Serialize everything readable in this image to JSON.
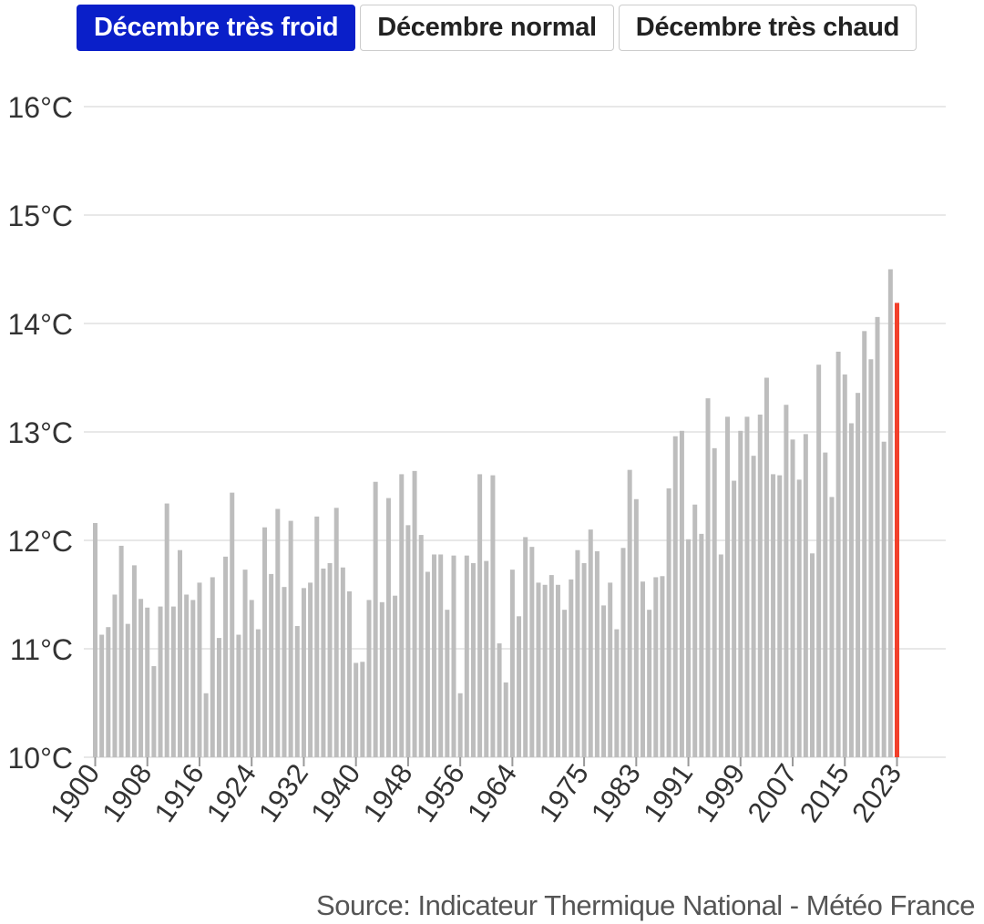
{
  "tabs": [
    {
      "label": "Décembre très froid",
      "active": true
    },
    {
      "label": "Décembre normal",
      "active": false
    },
    {
      "label": "Décembre très chaud",
      "active": false
    }
  ],
  "source": "Source: Indicateur Thermique National - Météo France",
  "colors": {
    "bar": "#bdbdbd",
    "highlight": "#f2402b",
    "grid": "#e8e8e8",
    "accent": "#0a1fc9"
  },
  "chart_data": {
    "type": "bar",
    "title": "",
    "xlabel": "",
    "ylabel": "",
    "ylim": [
      10,
      16
    ],
    "y_ticks": [
      {
        "value": 10,
        "label": "10°C"
      },
      {
        "value": 11,
        "label": "11°C"
      },
      {
        "value": 12,
        "label": "12°C"
      },
      {
        "value": 13,
        "label": "13°C"
      },
      {
        "value": 14,
        "label": "14°C"
      },
      {
        "value": 15,
        "label": "15°C"
      },
      {
        "value": 16,
        "label": "16°C"
      }
    ],
    "x_tick_labels": [
      "1900",
      "1908",
      "1916",
      "1924",
      "1932",
      "1940",
      "1948",
      "1956",
      "1964",
      "1975",
      "1983",
      "1991",
      "1999",
      "2007",
      "2015",
      "2023"
    ],
    "grid": true,
    "highlight_year": 2023,
    "x_start": 1900,
    "x_end": 2023,
    "values": [
      12.16,
      11.13,
      11.2,
      11.5,
      11.95,
      11.23,
      11.77,
      11.46,
      11.38,
      10.84,
      11.39,
      12.34,
      11.39,
      11.91,
      11.5,
      11.45,
      11.61,
      10.59,
      11.66,
      11.1,
      11.85,
      12.44,
      11.13,
      11.73,
      11.45,
      11.18,
      12.12,
      11.69,
      12.29,
      11.57,
      12.18,
      11.21,
      11.56,
      11.61,
      12.22,
      11.74,
      11.79,
      12.3,
      11.75,
      11.53,
      10.87,
      10.88,
      11.45,
      12.54,
      11.43,
      12.39,
      11.49,
      12.61,
      12.14,
      12.64,
      12.05,
      11.71,
      11.87,
      11.87,
      11.36,
      11.86,
      10.59,
      11.86,
      11.79,
      12.61,
      11.81,
      12.6,
      11.05,
      10.69,
      11.73,
      11.3,
      12.03,
      11.94,
      11.61,
      11.59,
      11.68,
      11.59,
      11.36,
      11.64,
      11.91,
      11.79,
      12.1,
      11.9,
      11.4,
      11.61,
      11.18,
      11.93,
      12.65,
      12.38,
      11.62,
      11.36,
      11.66,
      11.67,
      12.48,
      12.96,
      13.01,
      12.01,
      12.33,
      12.06,
      13.31,
      12.85,
      11.87,
      13.14,
      12.55,
      13.01,
      13.14,
      12.78,
      13.16,
      13.5,
      12.61,
      12.6,
      13.25,
      12.93,
      12.56,
      12.98,
      11.88,
      13.62,
      12.81,
      12.4,
      13.74,
      13.53,
      13.08,
      13.36,
      13.93,
      13.67,
      14.06,
      12.91,
      14.5,
      14.19
    ]
  }
}
